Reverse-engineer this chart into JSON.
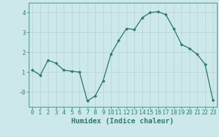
{
  "x": [
    0,
    1,
    2,
    3,
    4,
    5,
    6,
    7,
    8,
    9,
    10,
    11,
    12,
    13,
    14,
    15,
    16,
    17,
    18,
    19,
    20,
    21,
    22,
    23
  ],
  "y": [
    1.1,
    0.85,
    1.6,
    1.45,
    1.1,
    1.05,
    1.0,
    -0.45,
    -0.2,
    0.55,
    1.9,
    2.6,
    3.2,
    3.15,
    3.75,
    4.0,
    4.05,
    3.9,
    3.2,
    2.4,
    2.2,
    1.9,
    1.4,
    -0.4
  ],
  "xlabel": "Humidex (Indice chaleur)",
  "bg_color": "#cce8ea",
  "line_color": "#2d7a6e",
  "grid_color": "#b8d4d6",
  "xlim": [
    -0.5,
    23.5
  ],
  "ylim": [
    -0.75,
    4.5
  ],
  "yticks": [
    0,
    1,
    2,
    3,
    4
  ],
  "ytick_labels": [
    "-0",
    "1",
    "2",
    "3",
    "4"
  ],
  "xticks": [
    0,
    1,
    2,
    3,
    4,
    5,
    6,
    7,
    8,
    9,
    10,
    11,
    12,
    13,
    14,
    15,
    16,
    17,
    18,
    19,
    20,
    21,
    22,
    23
  ],
  "marker": "D",
  "markersize": 2.0,
  "linewidth": 1.0,
  "xlabel_fontsize": 7.5,
  "tick_fontsize": 6.0,
  "spine_color": "#5a9a8a"
}
